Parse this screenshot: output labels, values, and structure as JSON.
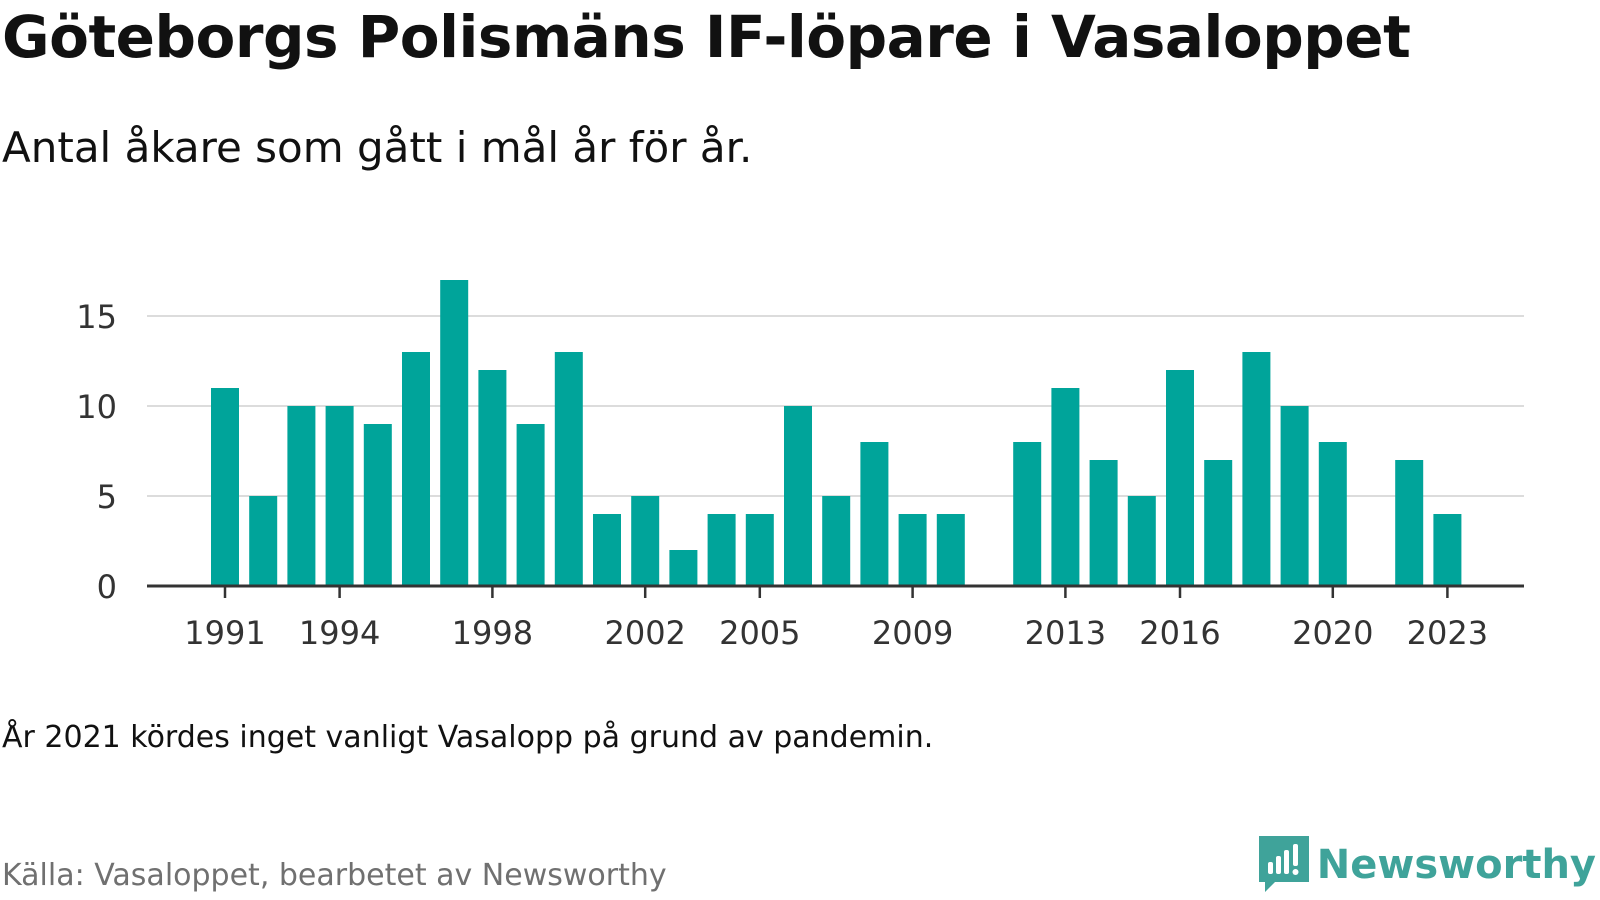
{
  "title": "Göteborgs Polismäns IF-löpare i Vasaloppet",
  "subtitle": "Antal åkare som gått i mål år för år.",
  "note": "År 2021 kördes inget vanligt Vasalopp på grund av pandemin.",
  "source": "Källa: Vasaloppet, bearbetet av Newsworthy",
  "brand": {
    "name": "Newsworthy",
    "icon": "newsworthy-logo-icon",
    "color": "#3fa39a"
  },
  "chart_data": {
    "type": "bar",
    "title": "Göteborgs Polismäns IF-löpare i Vasaloppet",
    "subtitle": "Antal åkare som gått i mål år för år.",
    "xlabel": "",
    "ylabel": "",
    "bar_color": "#00a49a",
    "grid": true,
    "ylim": [
      0,
      18
    ],
    "yticks": [
      0,
      5,
      10,
      15
    ],
    "xticks": [
      1991,
      1994,
      1998,
      2002,
      2005,
      2009,
      2013,
      2016,
      2020,
      2023
    ],
    "x": [
      1991,
      1992,
      1993,
      1994,
      1995,
      1996,
      1997,
      1998,
      1999,
      2000,
      2001,
      2002,
      2003,
      2004,
      2005,
      2006,
      2007,
      2008,
      2009,
      2010,
      2011,
      2012,
      2013,
      2014,
      2015,
      2016,
      2017,
      2018,
      2019,
      2020,
      2021,
      2022,
      2023
    ],
    "values": [
      11,
      5,
      10,
      10,
      9,
      13,
      17,
      12,
      9,
      13,
      4,
      5,
      2,
      4,
      4,
      10,
      5,
      8,
      4,
      4,
      null,
      8,
      11,
      7,
      5,
      12,
      7,
      13,
      10,
      8,
      null,
      7,
      4
    ]
  }
}
